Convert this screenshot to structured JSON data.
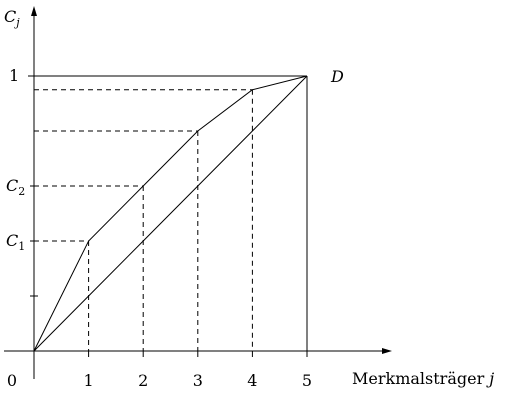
{
  "chart_data": {
    "type": "line",
    "x": [
      0,
      1,
      2,
      3,
      4,
      5
    ],
    "series": [
      {
        "values": [
          0,
          0.2,
          0.4,
          0.6,
          0.8,
          1.0
        ]
      },
      {
        "values": [
          0,
          0.4,
          0.6,
          0.8,
          0.95,
          1.0
        ]
      }
    ],
    "xlabel_text": "Merkmalsträger",
    "xlabel_var": "j",
    "ylabel_base": "C",
    "ylabel_sub": "j",
    "origin_label": "0",
    "x_tick_labels": [
      "1",
      "2",
      "3",
      "4",
      "5"
    ],
    "y_tick_labels": [
      {
        "value": 1.0,
        "base": "1",
        "sub": ""
      },
      {
        "value": 0.6,
        "base": "C",
        "sub": "2"
      },
      {
        "value": 0.4,
        "base": "C",
        "sub": "1"
      }
    ],
    "y_minor_ticks": [
      0.2
    ],
    "point_label": "D",
    "xlim": [
      0,
      5
    ],
    "ylim": [
      0,
      1
    ],
    "grid": false,
    "legend": "none"
  }
}
